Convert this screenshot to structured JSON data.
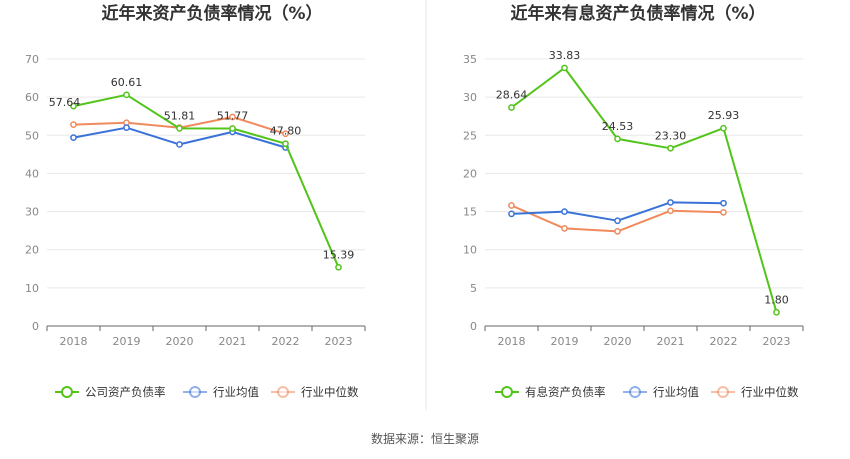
{
  "source": "数据来源：恒生聚源",
  "colors": {
    "main": "#52c41a",
    "avg": "#3a72d8",
    "median": "#f08a5d",
    "grid": "#e8e8e8",
    "divider": "#e6e6e6"
  },
  "chart_data": [
    {
      "type": "line",
      "title": "近年来资产负债率情况（%）",
      "categories": [
        "2018",
        "2019",
        "2020",
        "2021",
        "2022",
        "2023"
      ],
      "ylim": [
        0,
        70
      ],
      "yticks": [
        0,
        10,
        20,
        30,
        40,
        50,
        60,
        70
      ],
      "grid": true,
      "legend_position": "bottom",
      "series": [
        {
          "name": "公司资产负债率",
          "color_key": "main",
          "labels": true,
          "values": [
            57.64,
            60.61,
            51.81,
            51.77,
            47.8,
            15.39
          ],
          "value_labels": [
            "57.64",
            "60.61",
            "51.81",
            "51.77",
            "47.80",
            "15.39"
          ]
        },
        {
          "name": "行业均值",
          "color_key": "avg",
          "labels": false,
          "values": [
            49.4,
            52.0,
            47.6,
            50.9,
            46.8,
            null
          ]
        },
        {
          "name": "行业中位数",
          "color_key": "median",
          "labels": false,
          "values": [
            52.8,
            53.3,
            52.0,
            54.8,
            50.4,
            null
          ]
        }
      ]
    },
    {
      "type": "line",
      "title": "近年来有息资产负债率情况（%）",
      "categories": [
        "2018",
        "2019",
        "2020",
        "2021",
        "2022",
        "2023"
      ],
      "ylim": [
        0,
        35
      ],
      "yticks": [
        0,
        5,
        10,
        15,
        20,
        25,
        30,
        35
      ],
      "grid": true,
      "legend_position": "bottom",
      "series": [
        {
          "name": "有息资产负债率",
          "color_key": "main",
          "labels": true,
          "values": [
            28.64,
            33.83,
            24.53,
            23.3,
            25.93,
            1.8
          ],
          "value_labels": [
            "28.64",
            "33.83",
            "24.53",
            "23.30",
            "25.93",
            "1.80"
          ]
        },
        {
          "name": "行业均值",
          "color_key": "avg",
          "labels": false,
          "values": [
            14.7,
            15.0,
            13.8,
            16.2,
            16.1,
            null
          ]
        },
        {
          "name": "行业中位数",
          "color_key": "median",
          "labels": false,
          "values": [
            15.8,
            12.8,
            12.4,
            15.1,
            14.9,
            null
          ]
        }
      ]
    }
  ]
}
